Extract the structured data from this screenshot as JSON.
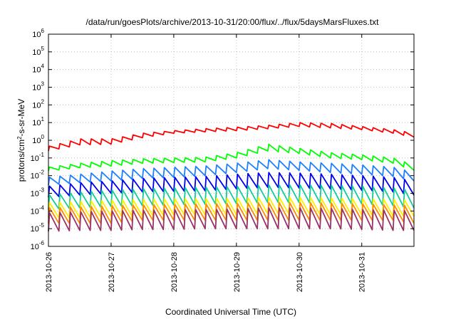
{
  "chart_data": {
    "type": "line",
    "title": "/data/run/goesPlots/archive/2013-10-31/20:00/flux/../flux/5daysMarsFluxes.txt",
    "xlabel": "Coordinated Universal Time (UTC)",
    "ylabel": "protons/cm2-s-sr-MeV",
    "ylabel_parts": {
      "pre": "protons/cm",
      "sup": "2",
      "post": "-s-sr-MeV"
    },
    "xlim": [
      "2013-10-26",
      "2013-10-31T20:00"
    ],
    "ylim": [
      1e-06,
      1000000.0
    ],
    "y_scale": "log",
    "grid": true,
    "x_ticks": [
      "2013-10-26",
      "2013-10-27",
      "2013-10-28",
      "2013-10-29",
      "2013-10-30",
      "2013-10-31"
    ],
    "y_ticks": [
      {
        "base": "10",
        "exp": "-6"
      },
      {
        "base": "10",
        "exp": "-5"
      },
      {
        "base": "10",
        "exp": "-4"
      },
      {
        "base": "10",
        "exp": "-3"
      },
      {
        "base": "10",
        "exp": "-2"
      },
      {
        "base": "10",
        "exp": "-1"
      },
      {
        "base": "10",
        "exp": "0"
      },
      {
        "base": "10",
        "exp": "1"
      },
      {
        "base": "10",
        "exp": "2"
      },
      {
        "base": "10",
        "exp": "3"
      },
      {
        "base": "10",
        "exp": "4"
      },
      {
        "base": "10",
        "exp": "5"
      },
      {
        "base": "10",
        "exp": "6"
      }
    ],
    "sawtooth_period_hours": 4,
    "series": [
      {
        "color": "#ff0000",
        "x": [
          "2013-10-26",
          "2013-10-26T12:00",
          "2013-10-27",
          "2013-10-27T12:00",
          "2013-10-28",
          "2013-10-28T12:00",
          "2013-10-29",
          "2013-10-29T12:00",
          "2013-10-30",
          "2013-10-30T12:00",
          "2013-10-31",
          "2013-10-31T12:00",
          "2013-10-31T20:00"
        ],
        "peak": [
          0.45,
          1.2,
          1.2,
          2.5,
          3.5,
          4.5,
          5.5,
          7,
          10,
          9,
          6,
          4,
          2.5
        ],
        "trough": [
          0.25,
          0.55,
          0.6,
          1.4,
          2.5,
          3,
          3.5,
          4.5,
          6,
          5,
          4,
          2.5,
          1.5
        ]
      },
      {
        "color": "#00ff00",
        "x": [
          "2013-10-26",
          "2013-10-26T12:00",
          "2013-10-27",
          "2013-10-27T12:00",
          "2013-10-28",
          "2013-10-28T12:00",
          "2013-10-29",
          "2013-10-29T12:00",
          "2013-10-30",
          "2013-10-30T12:00",
          "2013-10-31",
          "2013-10-31T12:00",
          "2013-10-31T20:00"
        ],
        "peak": [
          0.03,
          0.05,
          0.07,
          0.09,
          0.1,
          0.11,
          0.2,
          0.6,
          0.35,
          0.2,
          0.15,
          0.1,
          0.04
        ],
        "trough": [
          0.018,
          0.028,
          0.035,
          0.05,
          0.055,
          0.06,
          0.1,
          0.25,
          0.18,
          0.1,
          0.08,
          0.05,
          0.02
        ]
      },
      {
        "color": "#1e7fff",
        "x": [
          "2013-10-26",
          "2013-10-26T12:00",
          "2013-10-27",
          "2013-10-27T12:00",
          "2013-10-28",
          "2013-10-28T12:00",
          "2013-10-29",
          "2013-10-29T12:00",
          "2013-10-30",
          "2013-10-30T12:00",
          "2013-10-31",
          "2013-10-31T12:00",
          "2013-10-31T20:00"
        ],
        "peak": [
          0.008,
          0.012,
          0.018,
          0.025,
          0.03,
          0.035,
          0.05,
          0.08,
          0.06,
          0.05,
          0.04,
          0.03,
          0.015
        ],
        "trough": [
          0.003,
          0.004,
          0.005,
          0.007,
          0.008,
          0.01,
          0.015,
          0.025,
          0.02,
          0.015,
          0.012,
          0.009,
          0.005
        ]
      },
      {
        "color": "#0000ee",
        "x": [
          "2013-10-26",
          "2013-10-26T12:00",
          "2013-10-27",
          "2013-10-27T12:00",
          "2013-10-28",
          "2013-10-28T12:00",
          "2013-10-29",
          "2013-10-29T12:00",
          "2013-10-30",
          "2013-10-30T12:00",
          "2013-10-31",
          "2013-10-31T12:00",
          "2013-10-31T20:00"
        ],
        "peak": [
          0.0025,
          0.004,
          0.005,
          0.007,
          0.008,
          0.009,
          0.012,
          0.015,
          0.014,
          0.012,
          0.01,
          0.008,
          0.005
        ],
        "trough": [
          0.0006,
          0.0008,
          0.001,
          0.0012,
          0.0013,
          0.0014,
          0.0018,
          0.0022,
          0.002,
          0.0018,
          0.0015,
          0.0012,
          0.0008
        ]
      },
      {
        "color": "#11cc99",
        "x": [
          "2013-10-26",
          "2013-10-26T12:00",
          "2013-10-27",
          "2013-10-27T12:00",
          "2013-10-28",
          "2013-10-28T12:00",
          "2013-10-29",
          "2013-10-29T12:00",
          "2013-10-30",
          "2013-10-30T12:00",
          "2013-10-31",
          "2013-10-31T12:00",
          "2013-10-31T20:00"
        ],
        "peak": [
          0.0008,
          0.0012,
          0.0015,
          0.0018,
          0.002,
          0.0022,
          0.0025,
          0.003,
          0.003,
          0.0028,
          0.0025,
          0.002,
          0.0015
        ],
        "trough": [
          0.00012,
          0.00015,
          0.00018,
          0.0002,
          0.00022,
          0.00024,
          0.00026,
          0.0003,
          0.0003,
          0.00028,
          0.00025,
          0.0002,
          0.00015
        ]
      },
      {
        "color": "#ffee00",
        "x": [
          "2013-10-26",
          "2013-10-26T12:00",
          "2013-10-27",
          "2013-10-27T12:00",
          "2013-10-28",
          "2013-10-28T12:00",
          "2013-10-29",
          "2013-10-29T12:00",
          "2013-10-30",
          "2013-10-30T12:00",
          "2013-10-31",
          "2013-10-31T12:00",
          "2013-10-31T20:00"
        ],
        "peak": [
          0.0003,
          0.00035,
          0.0004,
          0.00045,
          0.0005,
          0.0005,
          0.00055,
          0.0006,
          0.0006,
          0.00055,
          0.0005,
          0.00045,
          0.0004
        ],
        "trough": [
          4e-05,
          4e-05,
          5e-05,
          5e-05,
          6e-05,
          6e-05,
          6e-05,
          7e-05,
          7e-05,
          6e-05,
          6e-05,
          5e-05,
          5e-05
        ]
      },
      {
        "color": "#ff8800",
        "x": [
          "2013-10-26",
          "2013-10-26T12:00",
          "2013-10-27",
          "2013-10-27T12:00",
          "2013-10-28",
          "2013-10-28T12:00",
          "2013-10-29",
          "2013-10-29T12:00",
          "2013-10-30",
          "2013-10-30T12:00",
          "2013-10-31",
          "2013-10-31T12:00",
          "2013-10-31T20:00"
        ],
        "peak": [
          0.00015,
          0.00017,
          0.0002,
          0.00022,
          0.00024,
          0.00025,
          0.00027,
          0.0003,
          0.0003,
          0.00028,
          0.00025,
          0.00022,
          0.0002
        ],
        "trough": [
          2e-05,
          2e-05,
          2e-05,
          3e-05,
          3e-05,
          3e-05,
          3e-05,
          3e-05,
          3e-05,
          3e-05,
          3e-05,
          3e-05,
          2e-05
        ]
      },
      {
        "color": "#993366",
        "x": [
          "2013-10-26",
          "2013-10-26T12:00",
          "2013-10-27",
          "2013-10-27T12:00",
          "2013-10-28",
          "2013-10-28T12:00",
          "2013-10-29",
          "2013-10-29T12:00",
          "2013-10-30",
          "2013-10-30T12:00",
          "2013-10-31",
          "2013-10-31T12:00",
          "2013-10-31T20:00"
        ],
        "peak": [
          8e-05,
          9e-05,
          0.0001,
          0.00011,
          0.00012,
          0.00012,
          0.00013,
          0.00015,
          0.00015,
          0.00014,
          0.00012,
          0.00011,
          0.0001
        ],
        "trough": [
          7e-06,
          8e-06,
          8e-06,
          9e-06,
          9e-06,
          1e-05,
          1e-05,
          1e-05,
          1e-05,
          1e-05,
          9e-06,
          8e-06,
          8e-06
        ]
      }
    ]
  }
}
